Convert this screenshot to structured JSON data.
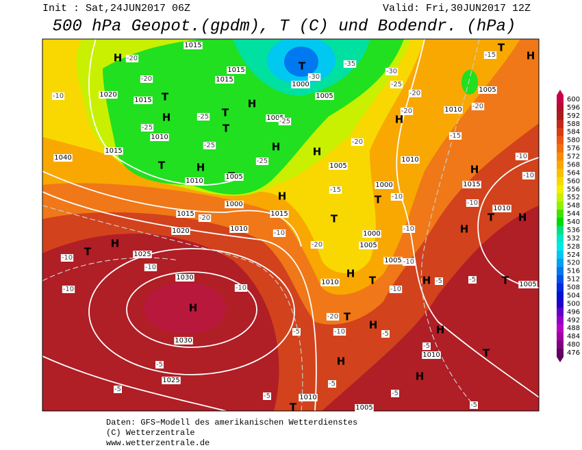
{
  "header": {
    "init": "Init : Sat,24JUN2017 06Z",
    "valid": "Valid: Fri,30JUN2017 12Z",
    "title": "500 hPa Geopot.(gpdm), T (C) und Bodendr. (hPa)"
  },
  "map": {
    "centers": [
      "H",
      "T",
      "H",
      "T",
      "H",
      "T",
      "H",
      "H",
      "T",
      "H",
      "T",
      "T",
      "H",
      "T",
      "T",
      "H",
      "T",
      "H",
      "H",
      "T",
      "H",
      "T",
      "H",
      "H",
      "T",
      "H",
      "H",
      "T",
      "H",
      "H",
      "T",
      "H",
      "H",
      "T",
      "H",
      "T"
    ],
    "isobars": [
      "1015",
      "1015",
      "1015",
      "1020",
      "1015",
      "1010",
      "1015",
      "1040",
      "1010",
      "1005",
      "1000",
      "1015",
      "1010",
      "1015",
      "1020",
      "1025",
      "1030",
      "1030",
      "1025",
      "1010",
      "1005",
      "1010",
      "1005",
      "1005",
      "1010",
      "1015",
      "1010",
      "1010",
      "1005",
      "1000",
      "1000",
      "1005",
      "1005",
      "1010",
      "1005",
      "1000",
      "1005"
    ],
    "temperatures": [
      "-20",
      "-20",
      "-10",
      "-25",
      "-25",
      "-25",
      "-25",
      "-25",
      "-30",
      "-35",
      "-30",
      "-25",
      "-20",
      "-20",
      "-20",
      "-15",
      "-15",
      "-10",
      "-10",
      "-10",
      "-10",
      "-10",
      "-15",
      "-20",
      "-20",
      "-10",
      "-20",
      "-10",
      "-10",
      "-10",
      "-10",
      "-5",
      "-5",
      "-5",
      "-20",
      "-10",
      "-5",
      "-5",
      "-5",
      "-5",
      "-5",
      "-5",
      "-5",
      "-10",
      "-5",
      "-10"
    ]
  },
  "colorbar": {
    "labels": [
      600,
      596,
      592,
      588,
      584,
      580,
      576,
      572,
      568,
      564,
      560,
      556,
      552,
      548,
      544,
      540,
      536,
      532,
      528,
      524,
      520,
      516,
      512,
      508,
      504,
      500,
      496,
      492,
      488,
      484,
      480,
      476
    ],
    "colors": [
      "#c8004c",
      "#b0102a",
      "#a81c1c",
      "#c02818",
      "#d83c14",
      "#e85810",
      "#f07010",
      "#f88c08",
      "#f8a800",
      "#f8c000",
      "#f8d800",
      "#f0f000",
      "#c8f000",
      "#90f000",
      "#40e000",
      "#00d800",
      "#00e080",
      "#00e8c0",
      "#00e8e8",
      "#00c8f0",
      "#00a0f0",
      "#0078f0",
      "#0050e8",
      "#0028e0",
      "#0010d0",
      "#2000c8",
      "#6000c8",
      "#9000c8",
      "#b800c8",
      "#a000a0",
      "#800080",
      "#600060"
    ]
  },
  "footer": {
    "lines": [
      "Daten: GFS−Modell des amerikanischen Wetterdienstes",
      "(C) Wetterzentrale",
      "www.wetterzentrale.de"
    ]
  }
}
